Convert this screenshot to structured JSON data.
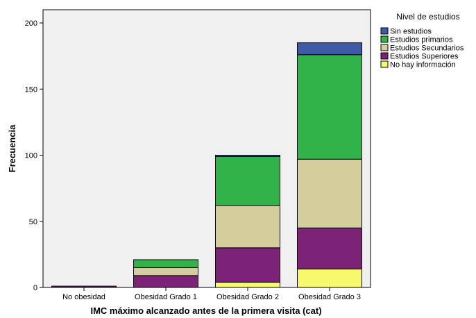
{
  "chart_data": {
    "type": "bar",
    "stacked": true,
    "categories": [
      "No obesidad",
      "Obesidad Grado 1",
      "Obesidad Grado 2",
      "Obesidad Grado 3"
    ],
    "series": [
      {
        "name": "No hay información",
        "color": "#f8f86c",
        "values": [
          0,
          0,
          4,
          14
        ]
      },
      {
        "name": "Estudios Superiores",
        "color": "#7d2377",
        "values": [
          1,
          9,
          26,
          31
        ]
      },
      {
        "name": "Estudios Secundarios",
        "color": "#d3ce9b",
        "values": [
          0,
          6,
          32,
          52
        ]
      },
      {
        "name": "Estudios primarios",
        "color": "#32b34a",
        "values": [
          0,
          6,
          37,
          79
        ]
      },
      {
        "name": "Sin estudios",
        "color": "#3f5ba8",
        "values": [
          0,
          0,
          1,
          9
        ]
      }
    ],
    "legend_title": "Nivel de estudios",
    "legend_order": [
      "Sin estudios",
      "Estudios primarios",
      "Estudios Secundarios",
      "Estudios Superiores",
      "No hay información"
    ],
    "legend_position": "top-right",
    "xlabel": "IMC máximo alcanzado antes de la primera visita (cat)",
    "ylabel": "Frecuencia",
    "ylim": [
      0,
      210
    ],
    "yticks": [
      0,
      50,
      100,
      150,
      200
    ],
    "plot_background": "#f0f0f0",
    "grid": false
  }
}
